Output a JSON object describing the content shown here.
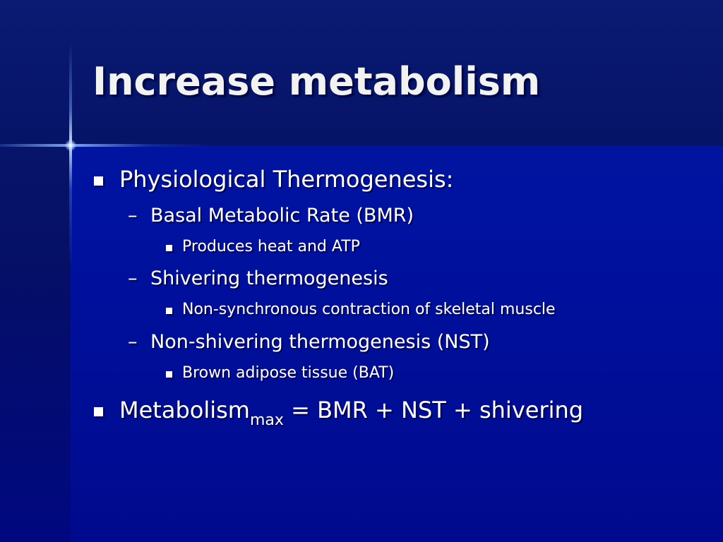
{
  "slide": {
    "title": "Increase metabolism",
    "bullets": [
      {
        "text": "Physiological Thermogenesis:",
        "sub": [
          {
            "text": "Basal Metabolic Rate (BMR)",
            "sub": [
              "Produces heat and ATP"
            ]
          },
          {
            "text": "Shivering thermogenesis",
            "sub": [
              "Non-synchronous contraction of skeletal muscle"
            ]
          },
          {
            "text": "Non-shivering thermogenesis (NST)",
            "sub": [
              "Brown adipose tissue (BAT)"
            ]
          }
        ]
      },
      {
        "text_main": "Metabolism",
        "text_subscript": "max",
        "text_rest": " = BMR + NST + shivering"
      }
    ],
    "dash_glyph": "–",
    "colors": {
      "background": "#0012a0",
      "band": "#07156b",
      "text": "#ffffff"
    }
  }
}
